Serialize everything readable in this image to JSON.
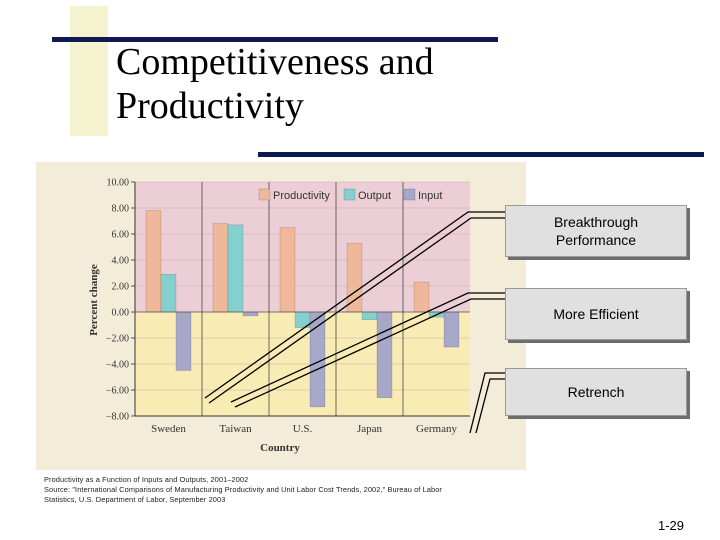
{
  "slide": {
    "title_line1": "Competitiveness and",
    "title_line2": "Productivity",
    "page_number": "1-29",
    "source_line1": "Productivity as a Function of Inputs and Outputs, 2001–2002",
    "source_line2": "Source: \"International Comparisons of Manufacturing Productivity and Unit Labor Cost Trends, 2002,\" Bureau of Labor",
    "source_line3": "Statistics, U.S. Department of Labor, September 2003"
  },
  "callouts": {
    "breakthrough_line1": "Breakthrough",
    "breakthrough_line2": "Performance",
    "efficient": "More Efficient",
    "retrench": "Retrench"
  },
  "colors": {
    "productivity": "#efb89a",
    "output": "#86cfcf",
    "input": "#a7a8c8",
    "upper_band": "#eccfd6",
    "lower_band": "#f8ecb4"
  },
  "chart_data": {
    "type": "bar",
    "categories": [
      "Sweden",
      "Taiwan",
      "U.S.",
      "Japan",
      "Germany"
    ],
    "series": [
      {
        "name": "Productivity",
        "values": [
          7.8,
          6.8,
          6.5,
          5.3,
          2.3
        ]
      },
      {
        "name": "Output",
        "values": [
          2.9,
          6.7,
          -1.2,
          -0.6,
          -0.4
        ]
      },
      {
        "name": "Input",
        "values": [
          -4.5,
          -0.3,
          -7.3,
          -6.6,
          -2.7
        ]
      }
    ],
    "xlabel": "Country",
    "ylabel": "Percent change",
    "ylim": [
      -8,
      10
    ],
    "yticks": [
      10,
      8,
      6,
      4,
      2,
      0,
      -2,
      -4,
      -6,
      -8
    ],
    "ytick_labels": [
      "10.00",
      "8.00",
      "6.00",
      "4.00",
      "2.00",
      "0.00",
      "−2.00",
      "−4.00",
      "−6.00",
      "−8.00"
    ],
    "legend_position": "top"
  }
}
